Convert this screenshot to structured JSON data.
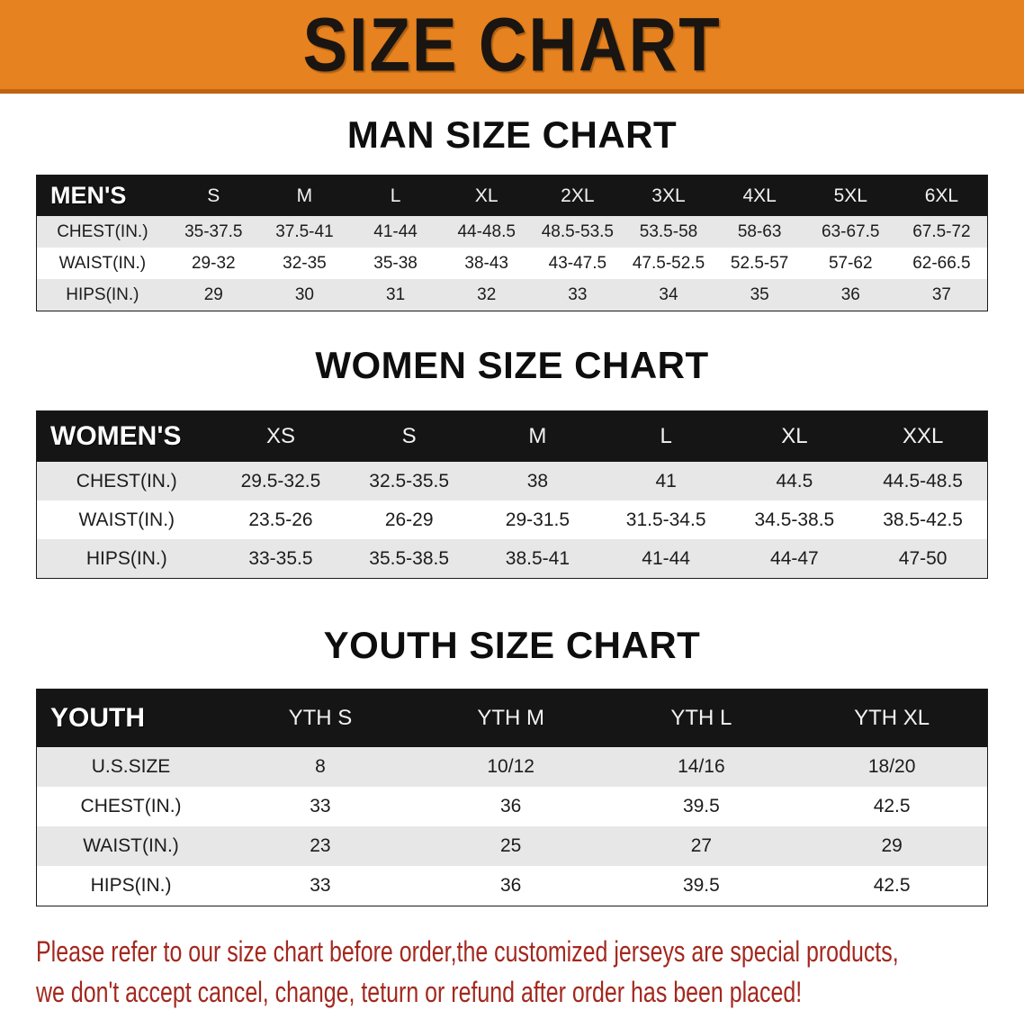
{
  "banner": {
    "title": "SIZE CHART",
    "bg_color": "#E6821F",
    "text_color": "#1A1510"
  },
  "sections": [
    {
      "heading": "MAN SIZE CHART",
      "table": {
        "title": "MEN'S",
        "columns": [
          "S",
          "M",
          "L",
          "XL",
          "2XL",
          "3XL",
          "4XL",
          "5XL",
          "6XL"
        ],
        "rows": [
          {
            "label": "CHEST(IN.)",
            "values": [
              "35-37.5",
              "37.5-41",
              "41-44",
              "44-48.5",
              "48.5-53.5",
              "53.5-58",
              "58-63",
              "63-67.5",
              "67.5-72"
            ]
          },
          {
            "label": "WAIST(IN.)",
            "values": [
              "29-32",
              "32-35",
              "35-38",
              "38-43",
              "43-47.5",
              "47.5-52.5",
              "52.5-57",
              "57-62",
              "62-66.5"
            ]
          },
          {
            "label": "HIPS(IN.)",
            "values": [
              "29",
              "30",
              "31",
              "32",
              "33",
              "34",
              "35",
              "36",
              "37"
            ]
          }
        ]
      }
    },
    {
      "heading": "WOMEN SIZE CHART",
      "table": {
        "title": "WOMEN'S",
        "columns": [
          "XS",
          "S",
          "M",
          "L",
          "XL",
          "XXL"
        ],
        "rows": [
          {
            "label": "CHEST(IN.)",
            "values": [
              "29.5-32.5",
              "32.5-35.5",
              "38",
              "41",
              "44.5",
              "44.5-48.5"
            ]
          },
          {
            "label": "WAIST(IN.)",
            "values": [
              "23.5-26",
              "26-29",
              "29-31.5",
              "31.5-34.5",
              "34.5-38.5",
              "38.5-42.5"
            ]
          },
          {
            "label": "HIPS(IN.)",
            "values": [
              "33-35.5",
              "35.5-38.5",
              "38.5-41",
              "41-44",
              "44-47",
              "47-50"
            ]
          }
        ]
      }
    },
    {
      "heading": "YOUTH SIZE CHART",
      "table": {
        "title": "YOUTH",
        "columns": [
          "YTH S",
          "YTH M",
          "YTH L",
          "YTH XL"
        ],
        "rows": [
          {
            "label": "U.S.SIZE",
            "values": [
              "8",
              "10/12",
              "14/16",
              "18/20"
            ]
          },
          {
            "label": "CHEST(IN.)",
            "values": [
              "33",
              "36",
              "39.5",
              "42.5"
            ]
          },
          {
            "label": "WAIST(IN.)",
            "values": [
              "23",
              "25",
              "27",
              "29"
            ]
          },
          {
            "label": "HIPS(IN.)",
            "values": [
              "33",
              "36",
              "39.5",
              "42.5"
            ]
          }
        ]
      }
    }
  ],
  "footer": {
    "line1": "Please refer to our size chart before order,the customized jerseys are special products,",
    "line2": "we don't accept cancel, change, teturn or refund after order has been placed!",
    "text_color": "#A3281E"
  },
  "colors": {
    "header_bar": "#151515",
    "row_shade": "#E7E7E7",
    "table_border": "#1A1A1A"
  }
}
